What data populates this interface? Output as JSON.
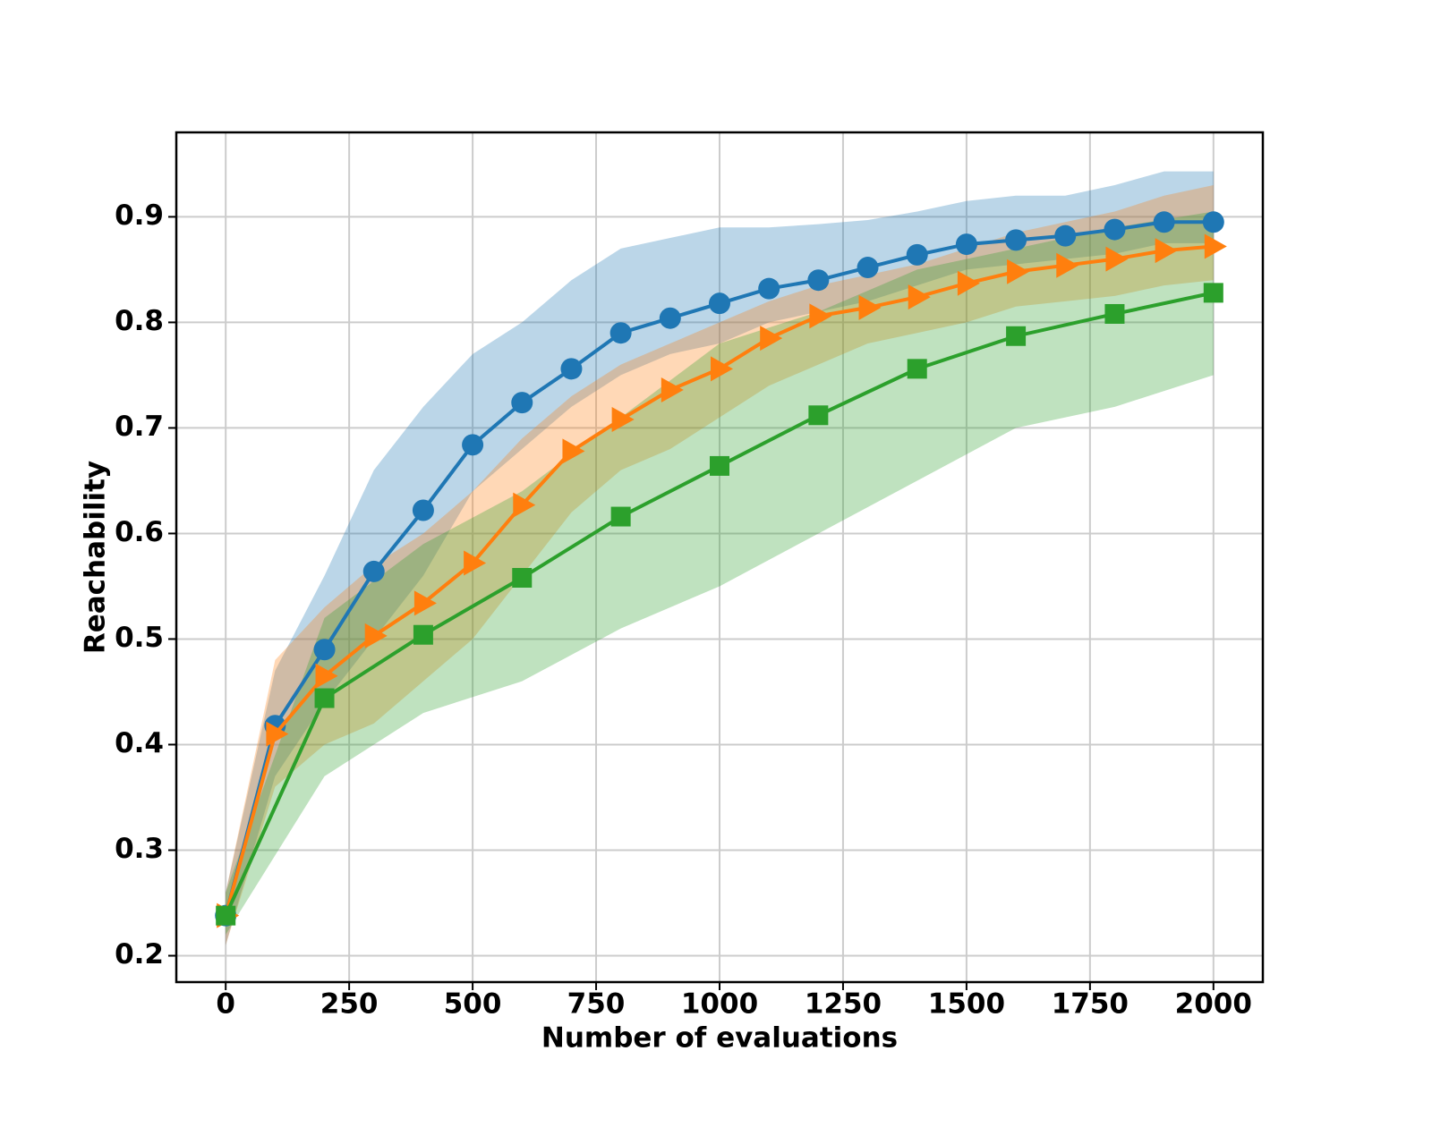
{
  "chart_data": {
    "type": "line",
    "xlabel": "Number of evaluations",
    "ylabel": "Reachability",
    "xlim": [
      -100,
      2100
    ],
    "ylim": [
      0.175,
      0.98
    ],
    "xticks": [
      0,
      250,
      500,
      750,
      1000,
      1250,
      1500,
      1750,
      2000
    ],
    "yticks": [
      0.2,
      0.3,
      0.4,
      0.5,
      0.6,
      0.7,
      0.8,
      0.9
    ],
    "grid": true,
    "series": [
      {
        "color": "#1f77b4",
        "marker": "circle",
        "x": [
          0,
          100,
          200,
          300,
          400,
          500,
          600,
          700,
          800,
          900,
          1000,
          1100,
          1200,
          1300,
          1400,
          1500,
          1600,
          1700,
          1800,
          1900,
          2000
        ],
        "values": [
          0.238,
          0.418,
          0.49,
          0.564,
          0.622,
          0.684,
          0.724,
          0.756,
          0.79,
          0.804,
          0.818,
          0.832,
          0.84,
          0.852,
          0.864,
          0.874,
          0.878,
          0.882,
          0.888,
          0.895,
          0.895
        ],
        "lower": [
          0.21,
          0.37,
          0.44,
          0.5,
          0.56,
          0.64,
          0.68,
          0.72,
          0.75,
          0.77,
          0.78,
          0.8,
          0.81,
          0.82,
          0.835,
          0.85,
          0.855,
          0.86,
          0.865,
          0.875,
          0.875
        ],
        "upper": [
          0.26,
          0.47,
          0.56,
          0.66,
          0.72,
          0.77,
          0.8,
          0.84,
          0.87,
          0.88,
          0.89,
          0.89,
          0.893,
          0.897,
          0.905,
          0.915,
          0.92,
          0.92,
          0.93,
          0.943,
          0.943
        ]
      },
      {
        "color": "#ff7f0e",
        "marker": "triangle-right",
        "x": [
          0,
          100,
          200,
          300,
          400,
          500,
          600,
          700,
          800,
          900,
          1000,
          1100,
          1200,
          1300,
          1400,
          1500,
          1600,
          1700,
          1800,
          1900,
          2000
        ],
        "values": [
          0.238,
          0.41,
          0.465,
          0.503,
          0.534,
          0.572,
          0.627,
          0.678,
          0.708,
          0.736,
          0.756,
          0.785,
          0.806,
          0.814,
          0.824,
          0.837,
          0.848,
          0.854,
          0.86,
          0.868,
          0.872
        ],
        "lower": [
          0.21,
          0.36,
          0.4,
          0.42,
          0.46,
          0.5,
          0.56,
          0.62,
          0.66,
          0.68,
          0.71,
          0.74,
          0.76,
          0.78,
          0.79,
          0.8,
          0.815,
          0.82,
          0.825,
          0.835,
          0.84
        ],
        "upper": [
          0.26,
          0.48,
          0.53,
          0.57,
          0.6,
          0.64,
          0.69,
          0.73,
          0.76,
          0.78,
          0.8,
          0.82,
          0.835,
          0.845,
          0.855,
          0.87,
          0.885,
          0.895,
          0.905,
          0.92,
          0.93
        ]
      },
      {
        "color": "#2ca02c",
        "marker": "square",
        "x": [
          0,
          200,
          400,
          600,
          800,
          1000,
          1200,
          1400,
          1600,
          1800,
          2000
        ],
        "values": [
          0.238,
          0.444,
          0.504,
          0.558,
          0.616,
          0.664,
          0.712,
          0.756,
          0.787,
          0.808,
          0.828
        ],
        "lower": [
          0.22,
          0.37,
          0.43,
          0.46,
          0.51,
          0.55,
          0.6,
          0.65,
          0.7,
          0.72,
          0.75
        ],
        "upper": [
          0.26,
          0.52,
          0.59,
          0.64,
          0.71,
          0.78,
          0.81,
          0.85,
          0.87,
          0.89,
          0.905
        ]
      }
    ]
  }
}
